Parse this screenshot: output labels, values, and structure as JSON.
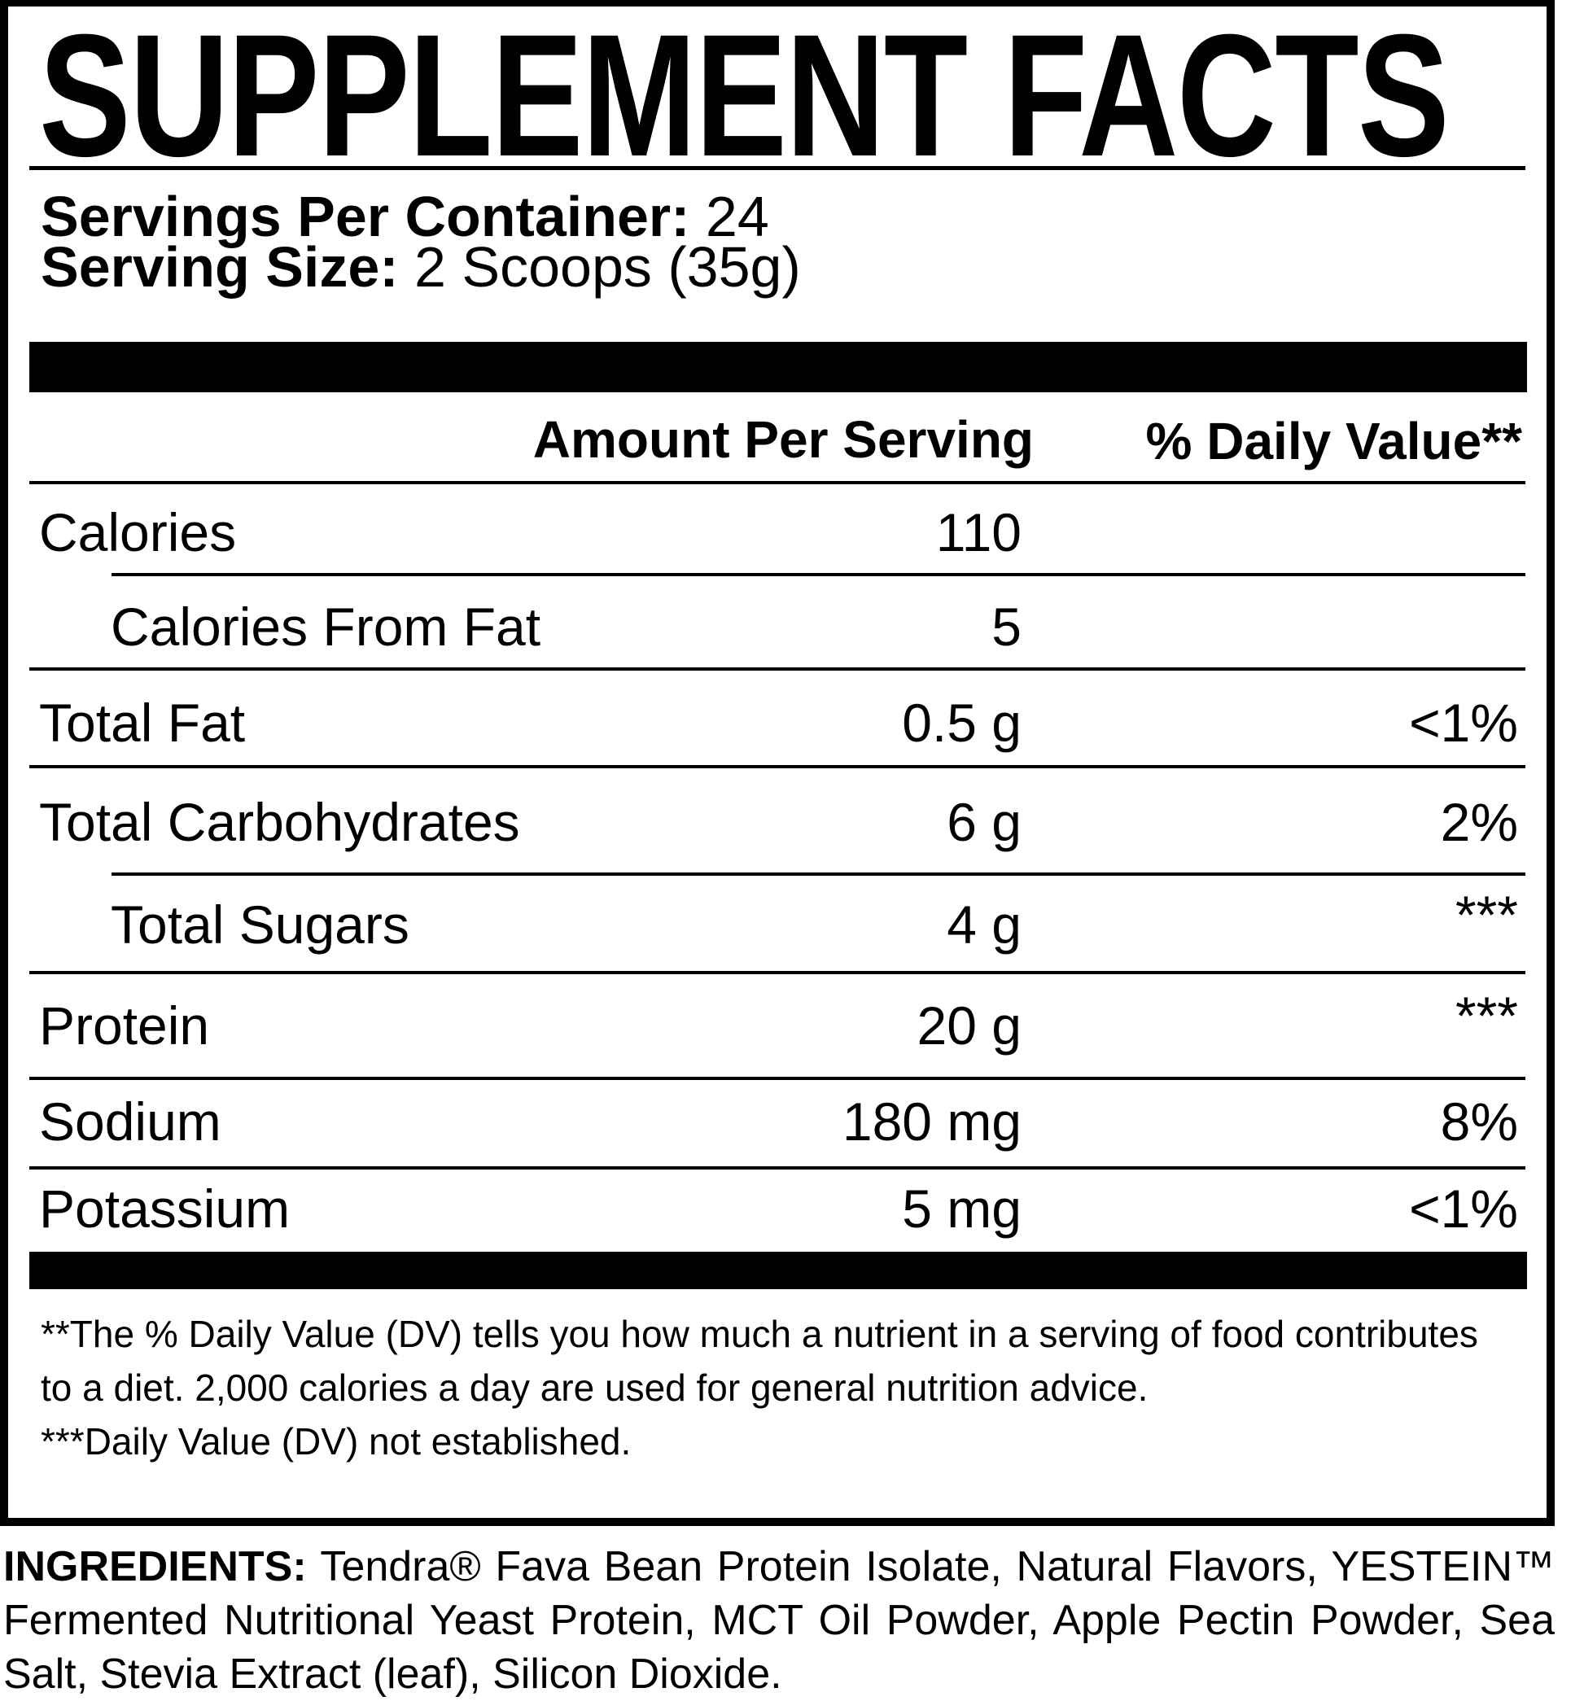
{
  "title": "SUPPLEMENT FACTS",
  "servings_per_container": {
    "label": "Servings Per Container:",
    "value": "24"
  },
  "serving_size": {
    "label": "Serving Size:",
    "value": "2 Scoops (35g)"
  },
  "headers": {
    "amount": "Amount Per Serving",
    "dv": "% Daily Value**"
  },
  "rows": [
    {
      "name": "Calories",
      "amount": "110",
      "dv": ""
    },
    {
      "name": "Calories From Fat",
      "amount": "5",
      "dv": ""
    },
    {
      "name": "Total Fat",
      "amount": "0.5 g",
      "dv": "<1%"
    },
    {
      "name": "Total Carbohydrates",
      "amount": "6 g",
      "dv": "2%"
    },
    {
      "name": "Total Sugars",
      "amount": "4 g",
      "dv": "***"
    },
    {
      "name": "Protein",
      "amount": "20 g",
      "dv": "***"
    },
    {
      "name": "Sodium",
      "amount": "180 mg",
      "dv": "8%"
    },
    {
      "name": "Potassium",
      "amount": "5 mg",
      "dv": "<1%"
    }
  ],
  "footnotes": [
    "**The % Daily Value (DV) tells you how much a nutrient in a serving of food contributes to a diet. 2,000 calories a day are used for general nutrition advice.",
    "***Daily Value (DV) not established."
  ],
  "ingredients": {
    "label": "INGREDIENTS:",
    "text": "Tendra® Fava Bean Protein Isolate, Natural Flavors, YESTEIN™ Fermented Nutritional Yeast Protein, MCT Oil Powder, Apple Pectin Powder, Sea Salt, Stevia Extract (leaf), Silicon Dioxide."
  }
}
